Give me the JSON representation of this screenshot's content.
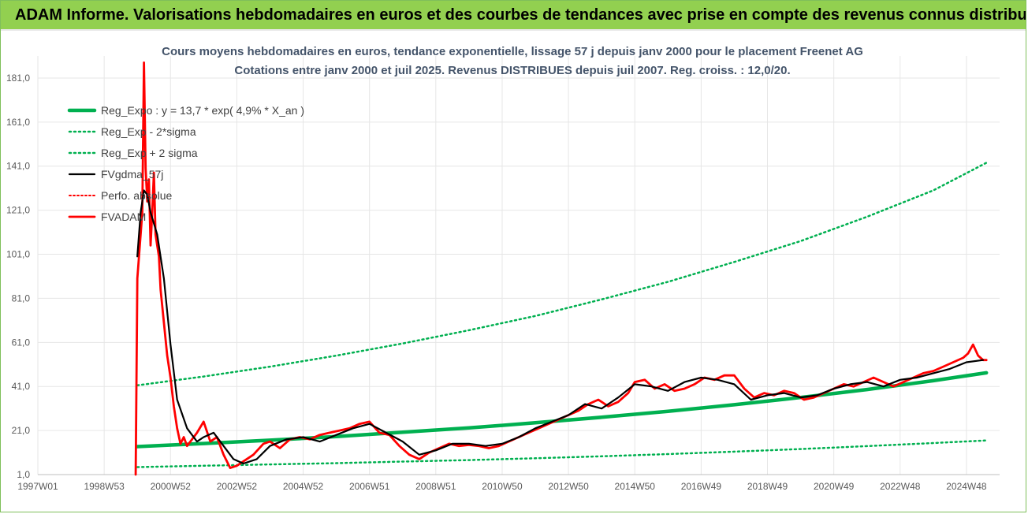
{
  "banner": {
    "title": "ADAM Informe. Valorisations hebdomadaires en euros et des courbes de tendances avec prise en compte des revenus connus distribués"
  },
  "colors": {
    "banner_bg": "#92d050",
    "regression": "#00b050",
    "actual": "#ff0000",
    "moving_avg": "#000000",
    "perfo": "#ff0000"
  },
  "chart_data": {
    "type": "line",
    "title": "Cours moyens hebdomadaires en euros, tendance exponentielle, lissage 57 j depuis janv 2000 pour le placement Freenet AG",
    "subtitle": "Cotations entre janv 2000 et juil 2025. Revenus DISTRIBUES depuis juil 2007. Reg. croiss. : 12,0/20.",
    "xlabel": "",
    "ylabel": "",
    "xlim": [
      1997.0,
      2026.0
    ],
    "ylim": [
      1.0,
      191.0
    ],
    "y_ticks": [
      "1,0",
      "21,0",
      "41,0",
      "61,0",
      "81,0",
      "101,0",
      "121,0",
      "141,0",
      "161,0",
      "181,0"
    ],
    "x_ticks": [
      "1997W01",
      "1998W53",
      "2000W52",
      "2002W52",
      "2004W52",
      "2006W51",
      "2008W51",
      "2010W50",
      "2012W50",
      "2014W50",
      "2016W49",
      "2018W49",
      "2020W49",
      "2022W48",
      "2024W48"
    ],
    "grid": true,
    "legend_position": "top-left",
    "series": [
      {
        "name": "Reg_Expo : y = 13,7 * exp( 4,9% *  X_an )",
        "style": "solid-green",
        "x": [
          2000.0,
          2002.0,
          2004.0,
          2006.0,
          2008.0,
          2010.0,
          2012.0,
          2014.0,
          2016.0,
          2018.0,
          2020.0,
          2022.0,
          2024.0,
          2025.6
        ],
        "values": [
          13.7,
          15.1,
          16.6,
          18.3,
          20.2,
          22.2,
          24.5,
          27.0,
          29.7,
          32.7,
          36.0,
          39.6,
          43.6,
          47.2
        ]
      },
      {
        "name": "Reg_Exp - 2*sigma",
        "style": "dotted-green",
        "x": [
          2000.0,
          2002.0,
          2004.0,
          2006.0,
          2008.0,
          2010.0,
          2012.0,
          2014.0,
          2016.0,
          2018.0,
          2020.0,
          2022.0,
          2024.0,
          2025.6
        ],
        "values": [
          4.4,
          5.0,
          5.6,
          6.2,
          6.9,
          7.6,
          8.4,
          9.3,
          10.3,
          11.4,
          12.6,
          13.9,
          15.3,
          16.5
        ]
      },
      {
        "name": "Reg_Exp + 2 sigma",
        "style": "dotted-green",
        "x": [
          2000.0,
          2002.0,
          2004.0,
          2006.0,
          2008.0,
          2010.0,
          2012.0,
          2014.0,
          2016.0,
          2018.0,
          2020.0,
          2022.0,
          2024.0,
          2025.6
        ],
        "values": [
          41.5,
          45.5,
          50.0,
          55.0,
          60.5,
          66.5,
          73.0,
          80.5,
          88.5,
          97.5,
          107.0,
          118.0,
          130.0,
          142.5
        ]
      },
      {
        "name": "FVgdma_57j",
        "style": "solid-black",
        "x": [
          2000.0,
          2000.1,
          2000.2,
          2000.3,
          2000.4,
          2000.6,
          2000.8,
          2001.0,
          2001.2,
          2001.5,
          2001.8,
          2002.0,
          2002.3,
          2002.6,
          2002.9,
          2003.2,
          2003.6,
          2004.0,
          2004.5,
          2005.0,
          2005.5,
          2006.0,
          2006.5,
          2007.0,
          2007.5,
          2008.0,
          2008.5,
          2009.0,
          2009.5,
          2010.0,
          2010.5,
          2011.0,
          2011.5,
          2012.0,
          2012.5,
          2013.0,
          2013.5,
          2014.0,
          2014.5,
          2015.0,
          2015.5,
          2016.0,
          2016.5,
          2017.0,
          2017.5,
          2018.0,
          2018.5,
          2019.0,
          2019.5,
          2020.0,
          2020.5,
          2021.0,
          2021.5,
          2022.0,
          2022.5,
          2023.0,
          2023.5,
          2024.0,
          2024.5,
          2025.0,
          2025.5
        ],
        "values": [
          100.0,
          120.0,
          130.0,
          128.0,
          120.0,
          110.0,
          90.0,
          60.0,
          35.0,
          22.0,
          16.0,
          18.0,
          20.0,
          14.0,
          8.0,
          6.0,
          8.0,
          14.0,
          17.0,
          18.0,
          16.0,
          19.0,
          22.0,
          24.0,
          20.0,
          16.0,
          10.0,
          12.0,
          15.0,
          15.0,
          14.0,
          15.0,
          18.0,
          22.0,
          25.0,
          28.0,
          33.0,
          31.0,
          36.0,
          42.0,
          41.0,
          39.0,
          43.0,
          45.0,
          44.0,
          42.0,
          35.0,
          37.0,
          38.0,
          36.0,
          37.0,
          40.0,
          42.0,
          43.0,
          41.0,
          44.0,
          45.0,
          47.0,
          49.0,
          52.0,
          53.0
        ]
      },
      {
        "name": "Perfo. absolue",
        "style": "dotted-red",
        "x": [],
        "values": []
      },
      {
        "name": "FVADAM",
        "style": "solid-red",
        "x": [
          1999.95,
          2000.0,
          2000.1,
          2000.15,
          2000.2,
          2000.25,
          2000.3,
          2000.35,
          2000.4,
          2000.45,
          2000.5,
          2000.55,
          2000.6,
          2000.65,
          2000.7,
          2000.8,
          2000.9,
          2001.0,
          2001.1,
          2001.2,
          2001.3,
          2001.4,
          2001.5,
          2001.6,
          2001.8,
          2002.0,
          2002.2,
          2002.4,
          2002.6,
          2002.8,
          2003.0,
          2003.2,
          2003.5,
          2003.8,
          2004.0,
          2004.3,
          2004.6,
          2004.9,
          2005.2,
          2005.5,
          2005.8,
          2006.1,
          2006.4,
          2006.7,
          2007.0,
          2007.3,
          2007.6,
          2007.9,
          2008.2,
          2008.5,
          2008.8,
          2009.1,
          2009.4,
          2009.7,
          2010.0,
          2010.3,
          2010.6,
          2010.9,
          2011.2,
          2011.5,
          2011.8,
          2012.1,
          2012.4,
          2012.7,
          2013.0,
          2013.3,
          2013.6,
          2013.9,
          2014.2,
          2014.5,
          2014.8,
          2015.0,
          2015.3,
          2015.6,
          2015.9,
          2016.2,
          2016.5,
          2016.8,
          2017.1,
          2017.4,
          2017.7,
          2018.0,
          2018.3,
          2018.6,
          2018.9,
          2019.2,
          2019.5,
          2019.8,
          2020.1,
          2020.4,
          2020.7,
          2021.0,
          2021.3,
          2021.6,
          2021.9,
          2022.2,
          2022.5,
          2022.8,
          2023.1,
          2023.4,
          2023.7,
          2024.0,
          2024.3,
          2024.6,
          2024.9,
          2025.05,
          2025.2,
          2025.35,
          2025.5,
          2025.6
        ],
        "values": [
          1.0,
          90.0,
          110.0,
          120.0,
          188.0,
          140.0,
          125.0,
          135.0,
          105.0,
          120.0,
          138.0,
          110.0,
          105.0,
          100.0,
          85.0,
          70.0,
          55.0,
          45.0,
          32.0,
          22.0,
          15.0,
          18.0,
          14.0,
          16.0,
          20.0,
          25.0,
          16.0,
          18.0,
          10.0,
          4.0,
          5.0,
          7.0,
          10.0,
          15.0,
          16.0,
          13.0,
          17.0,
          18.0,
          17.0,
          19.0,
          20.0,
          21.0,
          22.0,
          24.0,
          25.0,
          20.0,
          19.0,
          14.0,
          10.0,
          8.0,
          11.0,
          13.0,
          15.0,
          14.0,
          14.5,
          14.0,
          13.0,
          14.0,
          16.0,
          18.0,
          20.0,
          22.0,
          24.0,
          26.0,
          28.0,
          30.0,
          33.0,
          35.0,
          32.0,
          34.0,
          38.0,
          43.0,
          44.0,
          40.0,
          42.0,
          39.0,
          40.0,
          42.0,
          45.0,
          44.0,
          46.0,
          46.0,
          40.0,
          36.0,
          38.0,
          37.0,
          39.0,
          38.0,
          35.0,
          36.0,
          38.0,
          40.0,
          42.0,
          41.0,
          43.0,
          45.0,
          43.0,
          41.0,
          43.0,
          45.0,
          47.0,
          48.0,
          50.0,
          52.0,
          54.0,
          56.0,
          60.0,
          55.0,
          53.0,
          53.0
        ]
      }
    ]
  }
}
